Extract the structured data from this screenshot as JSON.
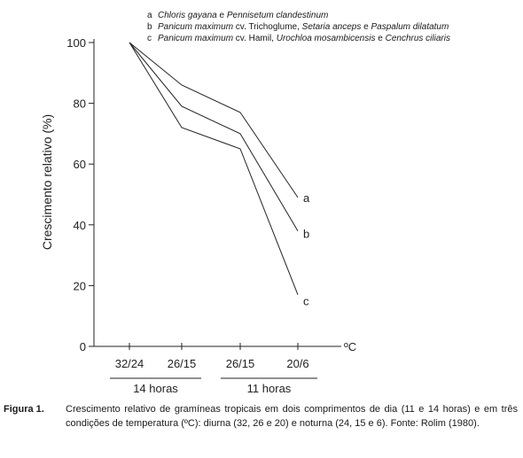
{
  "legend": [
    {
      "key": "a",
      "parts": [
        {
          "t": "Chloris gayana",
          "i": true
        },
        {
          "t": " e ",
          "i": false
        },
        {
          "t": "Pennisetum clandestinum",
          "i": true
        }
      ]
    },
    {
      "key": "b",
      "parts": [
        {
          "t": "Panicum maximum",
          "i": true
        },
        {
          "t": " cv. Trichoglume, ",
          "i": false
        },
        {
          "t": "Setaria anceps",
          "i": true
        },
        {
          "t": " e ",
          "i": false
        },
        {
          "t": "Paspalum dilatatum",
          "i": true
        }
      ]
    },
    {
      "key": "c",
      "parts": [
        {
          "t": "Panicum maximum",
          "i": true
        },
        {
          "t": " cv. Hamil, ",
          "i": false
        },
        {
          "t": "Urochloa mosambicensis",
          "i": true
        },
        {
          "t": " e ",
          "i": false
        },
        {
          "t": "Cenchrus ciliaris",
          "i": true
        }
      ]
    }
  ],
  "chart_data": {
    "type": "line",
    "title": "",
    "xlabel": "ºC",
    "ylabel": "Crescimento relativo (%)",
    "categories": [
      "32/24",
      "26/15",
      "26/15",
      "20/6"
    ],
    "ylim": [
      0,
      100
    ],
    "yticks": [
      0,
      20,
      40,
      60,
      80,
      100
    ],
    "series": [
      {
        "name": "a",
        "values": [
          100,
          86,
          77,
          49
        ]
      },
      {
        "name": "b",
        "values": [
          100,
          79,
          70,
          38
        ]
      },
      {
        "name": "c",
        "values": [
          100,
          72,
          65,
          17
        ]
      }
    ],
    "groups": [
      {
        "label": "14 horas",
        "from": 0,
        "to": 1
      },
      {
        "label": "11 horas",
        "from": 2,
        "to": 3
      }
    ],
    "grid": false
  },
  "caption": {
    "figure_label": "Figura 1.",
    "text": "Crescimento relativo de gramíneas tropicais em dois comprimentos de dia (11 e 14 horas) e em três condições de temperatura (ºC): diurna (32, 26 e 20) e noturna (24, 15 e 6). Fonte: Rolim (1980)."
  }
}
